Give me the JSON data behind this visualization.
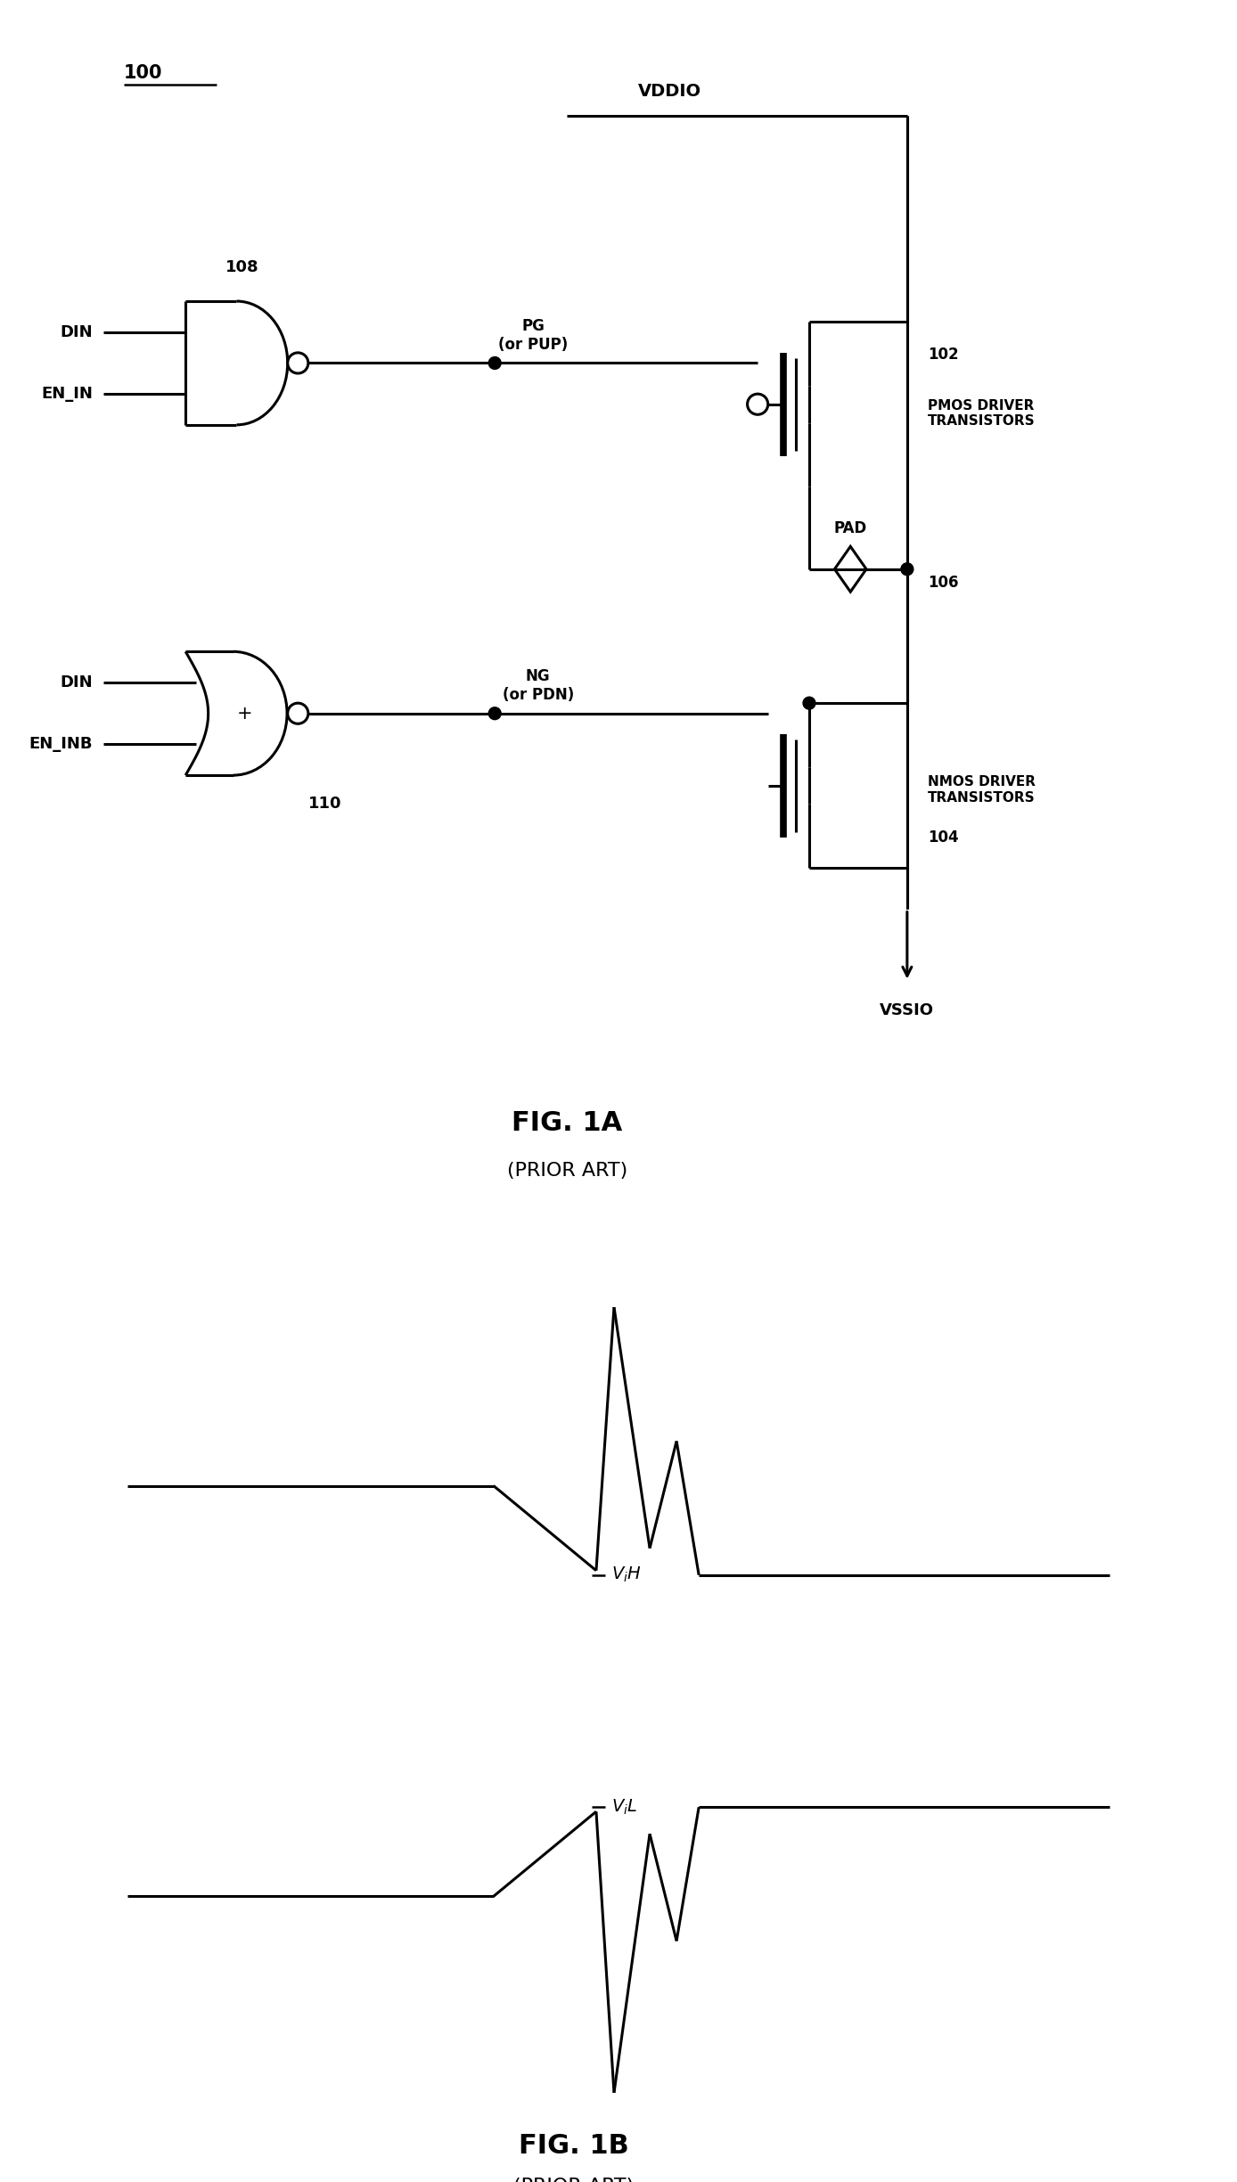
{
  "fig_width": 13.88,
  "fig_height": 24.49,
  "bg_color": "#ffffff",
  "line_color": "#000000",
  "fig1a_title": "FIG. 1A",
  "fig1a_subtitle": "(PRIOR ART)",
  "fig1b_title": "FIG. 1B",
  "fig1b_subtitle": "(PRIOR ART)",
  "label_100": "100",
  "label_102": "102",
  "label_104": "104",
  "label_106": "106",
  "label_108": "108",
  "label_110": "110",
  "label_VDDIO": "VDDIO",
  "label_VSSIO": "VSSIO",
  "label_PAD": "PAD",
  "label_PG": "PG\n(or PUP)",
  "label_NG": "NG\n(or PDN)",
  "label_PMOS": "PMOS DRIVER\nTRANSISTORS",
  "label_NMOS": "NMOS DRIVER\nTRANSISTORS",
  "label_DIN_top": "DIN",
  "label_ENIN": "EN_IN",
  "label_DIN_bot": "DIN",
  "label_ENINB": "EN_INB",
  "label_ViH": "V$_i$H",
  "label_ViL": "V$_i$L",
  "lw": 2.2
}
